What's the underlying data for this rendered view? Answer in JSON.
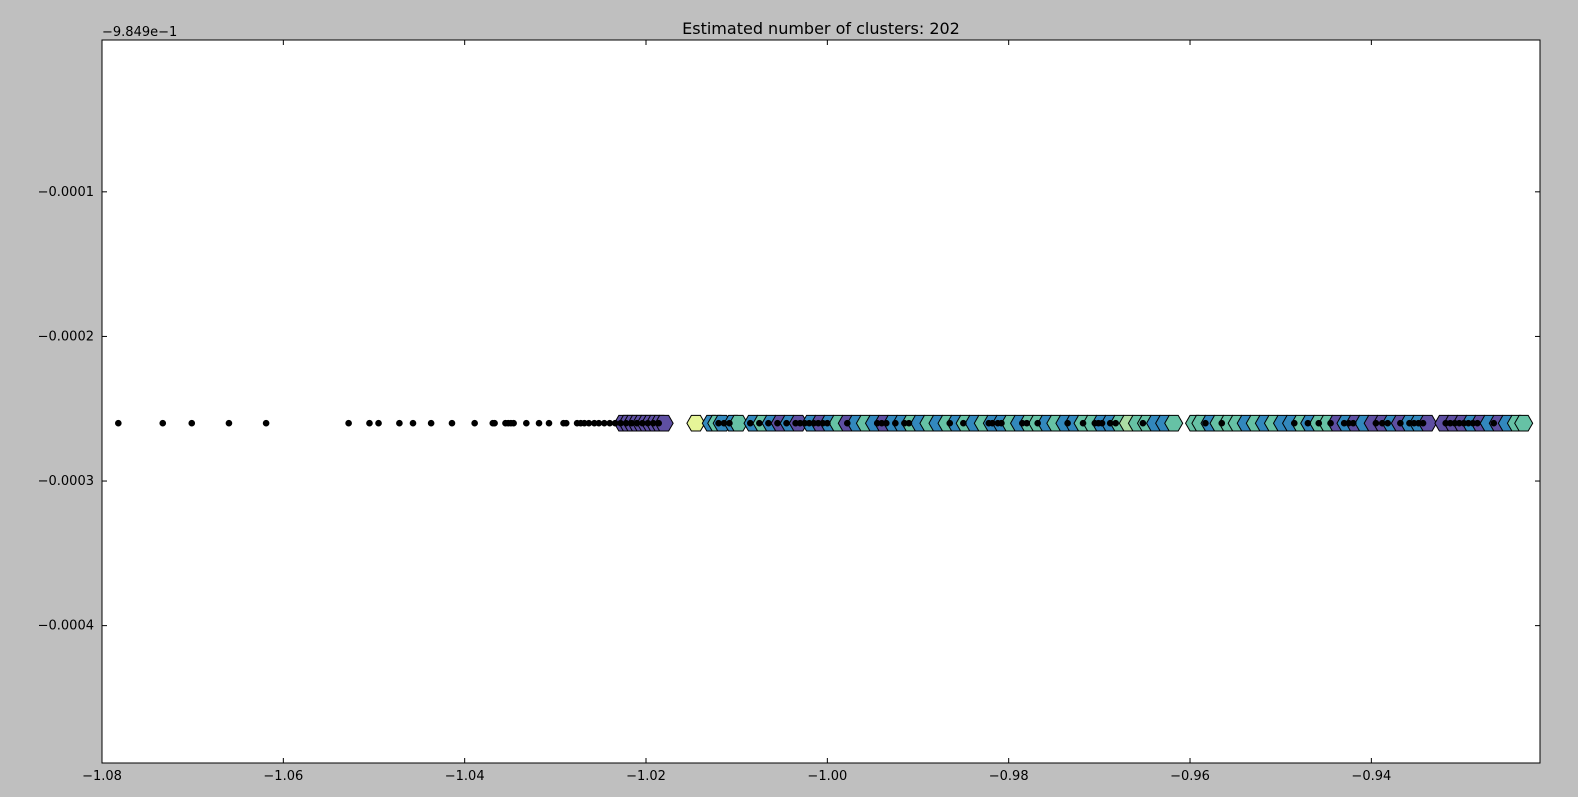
{
  "chart_data": {
    "type": "scatter",
    "title": "Estimated number of clusters: 202",
    "y_offset_label": "−9.849e−1",
    "xlabel": "",
    "ylabel": "",
    "xlim": [
      -1.08,
      -0.9214
    ],
    "ylim": [
      -0.000495,
      5e-06
    ],
    "x_ticks": [
      -1.08,
      -1.06,
      -1.04,
      -1.02,
      -1.0,
      -0.98,
      -0.96,
      -0.94
    ],
    "x_tick_labels": [
      "−1.08",
      "−1.06",
      "−1.04",
      "−1.02",
      "−1.00",
      "−0.98",
      "−0.96",
      "−0.94"
    ],
    "y_ticks": [
      -0.0001,
      -0.0002,
      -0.0003,
      -0.0004
    ],
    "y_tick_labels": [
      "−0.0001",
      "−0.0002",
      "−0.0003",
      "−0.0004"
    ],
    "grid": false,
    "legend": "none",
    "row_y": -0.00026,
    "colormap": [
      "#5e4fa2",
      "#3288bd",
      "#66c2a5",
      "#abdda4",
      "#e6f598"
    ],
    "noise_points": {
      "color": "#000000",
      "x": [
        -1.0782,
        -1.0733,
        -1.0701,
        -1.066,
        -1.0619,
        -1.0528,
        -1.0505,
        -1.0495,
        -1.0472,
        -1.0457,
        -1.0437,
        -1.0414,
        -1.0389,
        -1.0369,
        -1.0367,
        -1.0355,
        -1.0352,
        -1.0349,
        -1.0346,
        -1.0332,
        -1.0318,
        -1.0307,
        -1.0291,
        -1.0288,
        -1.0276,
        -1.0272,
        -1.0268,
        -1.0263,
        -1.0257,
        -1.0252,
        -1.0246,
        -1.024,
        -1.0234,
        -1.0228,
        -1.0222,
        -1.0216,
        -1.021,
        -1.0204,
        -1.0198,
        -1.0192,
        -1.0186,
        -1.012,
        -1.0114,
        -1.0108,
        -1.0085,
        -1.0075,
        -1.0065,
        -1.0055,
        -1.0045,
        -1.0035,
        -1.003,
        -1.0025,
        -1.002,
        -1.0015,
        -1.001,
        -1.0005,
        -1.0,
        -0.9978,
        -0.9945,
        -0.994,
        -0.9935,
        -0.9925,
        -0.9915,
        -0.991,
        -0.9865,
        -0.985,
        -0.9822,
        -0.9818,
        -0.9812,
        -0.9808,
        -0.9785,
        -0.978,
        -0.9768,
        -0.9735,
        -0.9718,
        -0.9705,
        -0.9701,
        -0.9697,
        -0.9688,
        -0.9682,
        -0.9652,
        -0.9583,
        -0.9565,
        -0.9485,
        -0.947,
        -0.9458,
        -0.9445,
        -0.943,
        -0.9425,
        -0.942,
        -0.9395,
        -0.9388,
        -0.9382,
        -0.9368,
        -0.9358,
        -0.9353,
        -0.9348,
        -0.9343,
        -0.9318,
        -0.9313,
        -0.9308,
        -0.9303,
        -0.9298,
        -0.9293,
        -0.9288,
        -0.9283,
        -0.9265
      ]
    },
    "cluster_points": {
      "x": [
        -1.0225,
        -1.022,
        -1.0215,
        -1.021,
        -1.0205,
        -1.02,
        -1.0195,
        -1.019,
        -1.0185,
        -1.018,
        -1.0145,
        -1.0128,
        -1.0122,
        -1.0116,
        -1.0104,
        -1.0098,
        -1.0082,
        -1.0072,
        -1.0062,
        -1.0052,
        -1.0042,
        -1.0032,
        -1.0018,
        -1.0008,
        -0.9998,
        -0.9988,
        -0.9978,
        -0.9968,
        -0.9958,
        -0.9948,
        -0.9938,
        -0.9928,
        -0.9918,
        -0.9908,
        -0.9898,
        -0.9888,
        -0.9878,
        -0.9868,
        -0.9858,
        -0.9848,
        -0.9838,
        -0.9828,
        -0.9818,
        -0.9808,
        -0.9798,
        -0.9788,
        -0.9778,
        -0.9768,
        -0.9758,
        -0.9748,
        -0.9738,
        -0.9728,
        -0.9718,
        -0.9708,
        -0.9698,
        -0.9688,
        -0.9678,
        -0.9668,
        -0.9658,
        -0.9648,
        -0.9638,
        -0.9628,
        -0.9618,
        -0.9595,
        -0.9588,
        -0.9578,
        -0.9568,
        -0.9558,
        -0.9548,
        -0.9538,
        -0.9528,
        -0.9518,
        -0.9508,
        -0.9498,
        -0.9488,
        -0.9478,
        -0.9468,
        -0.9458,
        -0.9448,
        -0.9438,
        -0.9428,
        -0.9418,
        -0.9408,
        -0.9398,
        -0.9388,
        -0.9378,
        -0.9368,
        -0.9358,
        -0.9348,
        -0.9338,
        -0.932,
        -0.931,
        -0.93,
        -0.929,
        -0.928,
        -0.927,
        -0.926,
        -0.925,
        -0.924,
        -0.9232
      ],
      "color_index": [
        0,
        0,
        0,
        0,
        0,
        0,
        0,
        0,
        0,
        0,
        4,
        1,
        2,
        1,
        1,
        2,
        1,
        2,
        1,
        0,
        1,
        0,
        1,
        0,
        1,
        2,
        0,
        1,
        2,
        1,
        0,
        1,
        1,
        2,
        1,
        2,
        1,
        2,
        1,
        2,
        1,
        2,
        1,
        1,
        2,
        1,
        2,
        2,
        1,
        2,
        1,
        1,
        2,
        2,
        1,
        1,
        2,
        3,
        2,
        2,
        1,
        1,
        2,
        2,
        2,
        1,
        2,
        2,
        2,
        1,
        2,
        1,
        2,
        1,
        1,
        2,
        1,
        2,
        2,
        0,
        1,
        0,
        1,
        0,
        0,
        1,
        0,
        1,
        1,
        0,
        0,
        0,
        0,
        1,
        0,
        1,
        0,
        1,
        2,
        2
      ]
    }
  }
}
